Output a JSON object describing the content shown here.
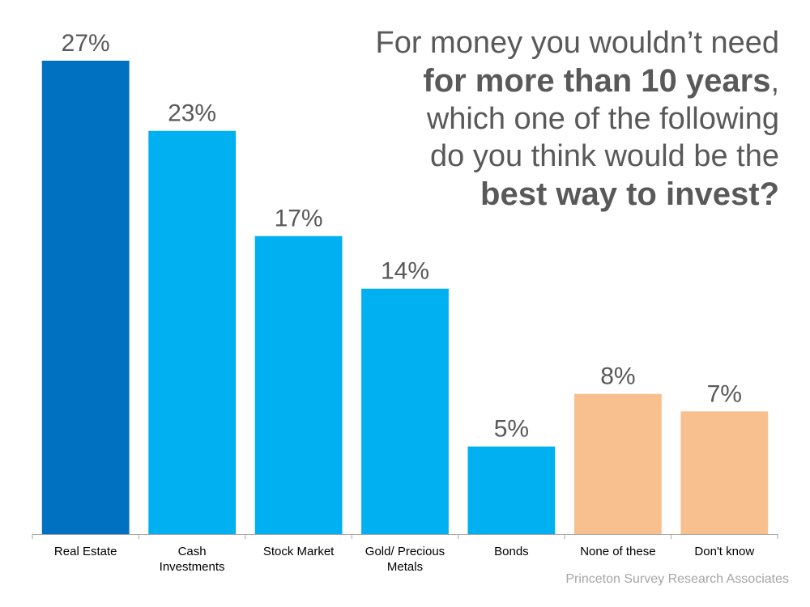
{
  "title": {
    "line1": "For money you wouldn’t need",
    "line2_bold": "for more than 10 years",
    "line2_suffix": ",",
    "line3": "which one of the following",
    "line4": "do you think would be the",
    "line5_bold": "best way to invest?"
  },
  "source": "Princeton Survey Research Associates",
  "chart_data": {
    "type": "bar",
    "categories": [
      [
        "Real Estate"
      ],
      [
        "Cash",
        "Investments"
      ],
      [
        "Stock Market"
      ],
      [
        "Gold/ Precious",
        "Metals"
      ],
      [
        "Bonds"
      ],
      [
        "None of these"
      ],
      [
        "Don't know"
      ]
    ],
    "values": [
      27,
      23,
      17,
      14,
      5,
      8,
      7
    ],
    "value_labels": [
      "27%",
      "23%",
      "17%",
      "14%",
      "5%",
      "8%",
      "7%"
    ],
    "colors": [
      "#0070C0",
      "#00B0F0",
      "#00B0F0",
      "#00B0F0",
      "#00B0F0",
      "#F9C08F",
      "#F9C08F"
    ],
    "ylim": [
      0,
      30
    ],
    "grid": false,
    "legend": "none",
    "axis_color": "#A6A6A6"
  }
}
